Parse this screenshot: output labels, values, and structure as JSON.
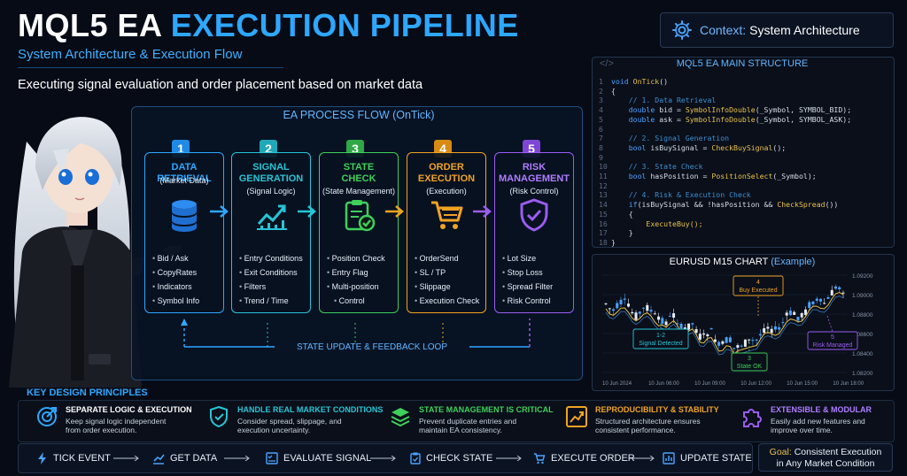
{
  "header": {
    "title_part1": "MQL5 EA ",
    "title_part2": "EXECUTION PIPELINE",
    "subtitle": "System Architecture & Execution Flow",
    "tagline": "Executing signal evaluation and order placement based on market data",
    "context_label": "Context:",
    "context_value": "System Architecture",
    "context_icon": "gear-icon"
  },
  "flow": {
    "title": "EA PROCESS FLOW (OnTick)",
    "loop_label": "STATE UPDATE & FEEDBACK LOOP",
    "steps": [
      {
        "num": "1",
        "title_l1": "DATA RETRIEVAL",
        "title_l2": "",
        "sub": "(Market Data)",
        "color": "#2ea7ff",
        "icon": "database-icon",
        "items": [
          "Bid / Ask",
          "CopyRates",
          "Indicators",
          "Symbol Info"
        ]
      },
      {
        "num": "2",
        "title_l1": "SIGNAL",
        "title_l2": "GENERATION",
        "sub": "(Signal Logic)",
        "color": "#27c5d6",
        "icon": "chart-line-icon",
        "items": [
          "Entry Conditions",
          "Exit Conditions",
          "Filters",
          "Trend / Time"
        ]
      },
      {
        "num": "3",
        "title_l1": "STATE",
        "title_l2": "CHECK",
        "sub": "(State Management)",
        "color": "#3fcf5a",
        "icon": "clipboard-check-icon",
        "items": [
          "Position Check",
          "Entry Flag",
          "Multi-position",
          "Control"
        ]
      },
      {
        "num": "4",
        "title_l1": "ORDER",
        "title_l2": "EXECUTION",
        "sub": "(Execution)",
        "color": "#f0a323",
        "icon": "cart-icon",
        "items": [
          "OrderSend",
          "SL / TP",
          "Slippage",
          "Execution Check"
        ]
      },
      {
        "num": "5",
        "title_l1": "RISK",
        "title_l2": "MANAGEMENT",
        "sub": "(Risk Control)",
        "color": "#9b5cf0",
        "icon": "shield-check-icon",
        "items": [
          "Lot Size",
          "Stop Loss",
          "Spread Filter",
          "Risk Control"
        ]
      }
    ]
  },
  "code": {
    "title": "MQL5 EA MAIN STRUCTURE",
    "lines": [
      {
        "n": "1",
        "t": "void OnTick()"
      },
      {
        "n": "2",
        "t": "{"
      },
      {
        "n": "3",
        "t": "    // 1. Data Retrieval"
      },
      {
        "n": "4",
        "t": "    double bid = SymbolInfoDouble(_Symbol, SYMBOL_BID);"
      },
      {
        "n": "5",
        "t": "    double ask = SymbolInfoDouble(_Symbol, SYMBOL_ASK);"
      },
      {
        "n": "6",
        "t": ""
      },
      {
        "n": "7",
        "t": "    // 2. Signal Generation"
      },
      {
        "n": "8",
        "t": "    bool isBuySignal = CheckBuySignal();"
      },
      {
        "n": "9",
        "t": ""
      },
      {
        "n": "10",
        "t": "    // 3. State Check"
      },
      {
        "n": "11",
        "t": "    bool hasPosition = PositionSelect(_Symbol);"
      },
      {
        "n": "12",
        "t": ""
      },
      {
        "n": "13",
        "t": "    // 4. Risk & Execution Check"
      },
      {
        "n": "14",
        "t": "    if(isBuySignal && !hasPosition && CheckSpread())"
      },
      {
        "n": "15",
        "t": "    {"
      },
      {
        "n": "16",
        "t": "        ExecuteBuy();"
      },
      {
        "n": "17",
        "t": "    }"
      },
      {
        "n": "18",
        "t": "}"
      }
    ]
  },
  "chart": {
    "title_a": "EURUSD M15 CHART",
    "title_b": "(Example)",
    "y_ticks": [
      "1.09200",
      "1.09000",
      "1.08800",
      "1.08600",
      "1.08400",
      "1.08200"
    ],
    "x_ticks": [
      "10 Jun 2024",
      "10 Jun 06:00",
      "10 Jun 09:00",
      "10 Jun 12:00",
      "10 Jun 15:00",
      "10 Jun 18:00"
    ],
    "callouts": [
      {
        "l1": "1-2",
        "l2": "Signal Detected",
        "color": "#27c5d6"
      },
      {
        "l1": "3",
        "l2": "State OK",
        "color": "#3fcf5a"
      },
      {
        "l1": "4",
        "l2": "Buy Executed",
        "color": "#f0a323"
      },
      {
        "l1": "5",
        "l2": "Risk Managed",
        "color": "#9b5cf0"
      }
    ]
  },
  "principles": {
    "title": "KEY DESIGN PRINCIPLES",
    "items": [
      {
        "title": "SEPARATE LOGIC & EXECUTION",
        "desc1": "Keep signal logic independent",
        "desc2": "from order execution.",
        "color": "#2ea7ff",
        "icon": "target-icon"
      },
      {
        "title": "HANDLE REAL MARKET CONDITIONS",
        "desc1": "Consider spread, slippage, and",
        "desc2": "execution uncertainty.",
        "color": "#27c5d6",
        "icon": "shield-check-icon"
      },
      {
        "title": "STATE MANAGEMENT IS CRITICAL",
        "desc1": "Prevent duplicate entries and",
        "desc2": "maintain EA consistency.",
        "color": "#3fcf5a",
        "icon": "layers-icon"
      },
      {
        "title": "REPRODUCIBILITY & STABILITY",
        "desc1": "Structured architecture ensures",
        "desc2": "consistent performance.",
        "color": "#f0a323",
        "icon": "growth-chart-icon"
      },
      {
        "title": "EXTENSIBLE & MODULAR",
        "desc1": "Easily add new features and",
        "desc2": "improve over time.",
        "color": "#9b5cf0",
        "icon": "puzzle-icon"
      }
    ]
  },
  "bottom_flow": {
    "items": [
      {
        "label": "TICK EVENT",
        "icon": "lightning-icon"
      },
      {
        "label": "GET DATA",
        "icon": "chart-line-icon"
      },
      {
        "label": "EVALUATE SIGNAL",
        "icon": "checklist-icon"
      },
      {
        "label": "CHECK STATE",
        "icon": "clipboard-check-icon"
      },
      {
        "label": "EXECUTE ORDER",
        "icon": "cart-icon"
      },
      {
        "label": "UPDATE STATE",
        "icon": "bar-chart-icon"
      }
    ],
    "goal_label": "Goal:",
    "goal_text1": "Consistent Execution",
    "goal_text2": "in Any Market Condition"
  }
}
